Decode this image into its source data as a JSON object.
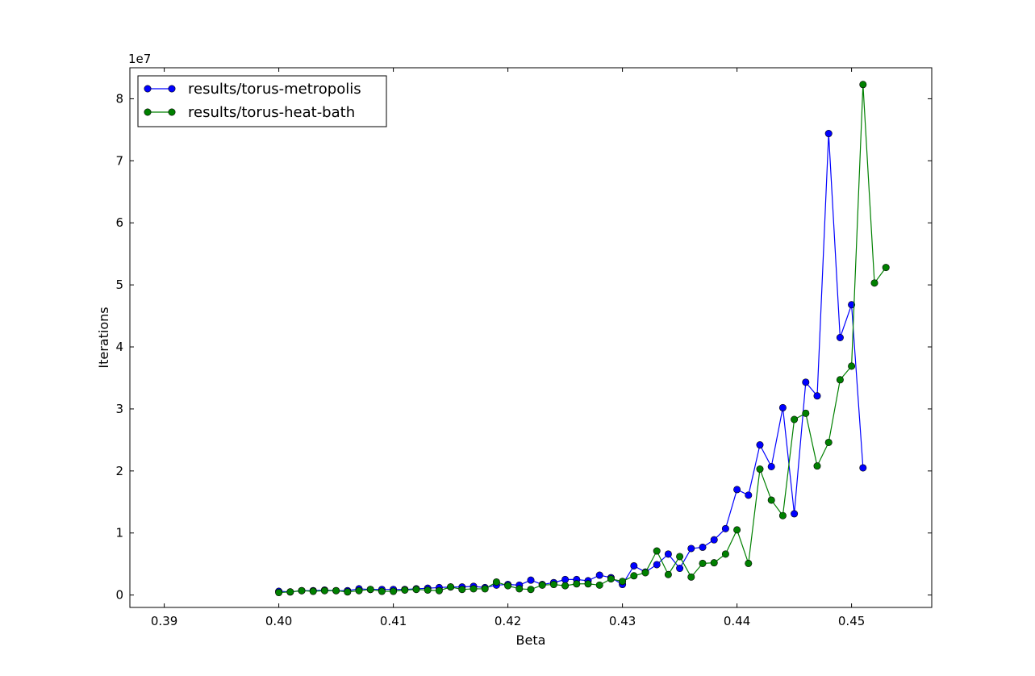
{
  "chart_data": {
    "type": "line",
    "xlabel": "Beta",
    "ylabel": "Iterations",
    "y_offset_label": "1e7",
    "y_scale": 10000000,
    "xlim": [
      0.387,
      0.457
    ],
    "ylim": [
      -0.2,
      8.5
    ],
    "xticks": [
      0.39,
      0.4,
      0.41,
      0.42,
      0.43,
      0.44,
      0.45
    ],
    "xtick_labels": [
      "0.39",
      "0.40",
      "0.41",
      "0.42",
      "0.43",
      "0.44",
      "0.45"
    ],
    "yticks": [
      0,
      1,
      2,
      3,
      4,
      5,
      6,
      7,
      8
    ],
    "ytick_labels": [
      "0",
      "1",
      "2",
      "3",
      "4",
      "5",
      "6",
      "7",
      "8"
    ],
    "grid": false,
    "legend_position": "top-left",
    "marker": "circle",
    "series": [
      {
        "name": "results/torus-metropolis",
        "color": "#0000ff",
        "x": [
          0.4,
          0.401,
          0.402,
          0.403,
          0.404,
          0.405,
          0.406,
          0.407,
          0.408,
          0.409,
          0.41,
          0.411,
          0.412,
          0.413,
          0.414,
          0.415,
          0.416,
          0.417,
          0.418,
          0.419,
          0.42,
          0.421,
          0.422,
          0.423,
          0.424,
          0.425,
          0.426,
          0.427,
          0.428,
          0.429,
          0.43,
          0.431,
          0.432,
          0.433,
          0.434,
          0.435,
          0.436,
          0.437,
          0.438,
          0.439,
          0.44,
          0.441,
          0.442,
          0.443,
          0.444,
          0.445,
          0.446,
          0.447,
          0.448,
          0.449,
          0.45,
          0.451
        ],
        "values": [
          0.06,
          0.05,
          0.07,
          0.07,
          0.08,
          0.07,
          0.07,
          0.1,
          0.09,
          0.09,
          0.09,
          0.09,
          0.1,
          0.11,
          0.12,
          0.13,
          0.13,
          0.14,
          0.12,
          0.16,
          0.17,
          0.16,
          0.24,
          0.17,
          0.2,
          0.25,
          0.25,
          0.23,
          0.32,
          0.28,
          0.17,
          0.47,
          0.37,
          0.49,
          0.66,
          0.43,
          0.75,
          0.77,
          0.89,
          1.07,
          1.7,
          1.61,
          2.42,
          2.07,
          3.02,
          1.31,
          3.43,
          3.21,
          7.44,
          4.15,
          4.68,
          2.05
        ]
      },
      {
        "name": "results/torus-heat-bath",
        "color": "#008000",
        "x": [
          0.4,
          0.401,
          0.402,
          0.403,
          0.404,
          0.405,
          0.406,
          0.407,
          0.408,
          0.409,
          0.41,
          0.411,
          0.412,
          0.413,
          0.414,
          0.415,
          0.416,
          0.417,
          0.418,
          0.419,
          0.42,
          0.421,
          0.422,
          0.423,
          0.424,
          0.425,
          0.426,
          0.427,
          0.428,
          0.429,
          0.43,
          0.431,
          0.432,
          0.433,
          0.434,
          0.435,
          0.436,
          0.437,
          0.438,
          0.439,
          0.44,
          0.441,
          0.442,
          0.443,
          0.444,
          0.445,
          0.446,
          0.447,
          0.448,
          0.449,
          0.45,
          0.451,
          0.452,
          0.453
        ],
        "values": [
          0.04,
          0.05,
          0.07,
          0.06,
          0.07,
          0.07,
          0.05,
          0.07,
          0.09,
          0.06,
          0.06,
          0.08,
          0.09,
          0.08,
          0.07,
          0.13,
          0.09,
          0.1,
          0.1,
          0.21,
          0.15,
          0.1,
          0.09,
          0.16,
          0.17,
          0.15,
          0.18,
          0.18,
          0.16,
          0.26,
          0.22,
          0.31,
          0.36,
          0.71,
          0.33,
          0.62,
          0.29,
          0.51,
          0.52,
          0.66,
          1.05,
          0.51,
          2.03,
          1.53,
          1.28,
          2.83,
          2.93,
          2.08,
          2.46,
          3.47,
          3.69,
          8.23,
          5.03,
          5.28
        ]
      }
    ]
  }
}
